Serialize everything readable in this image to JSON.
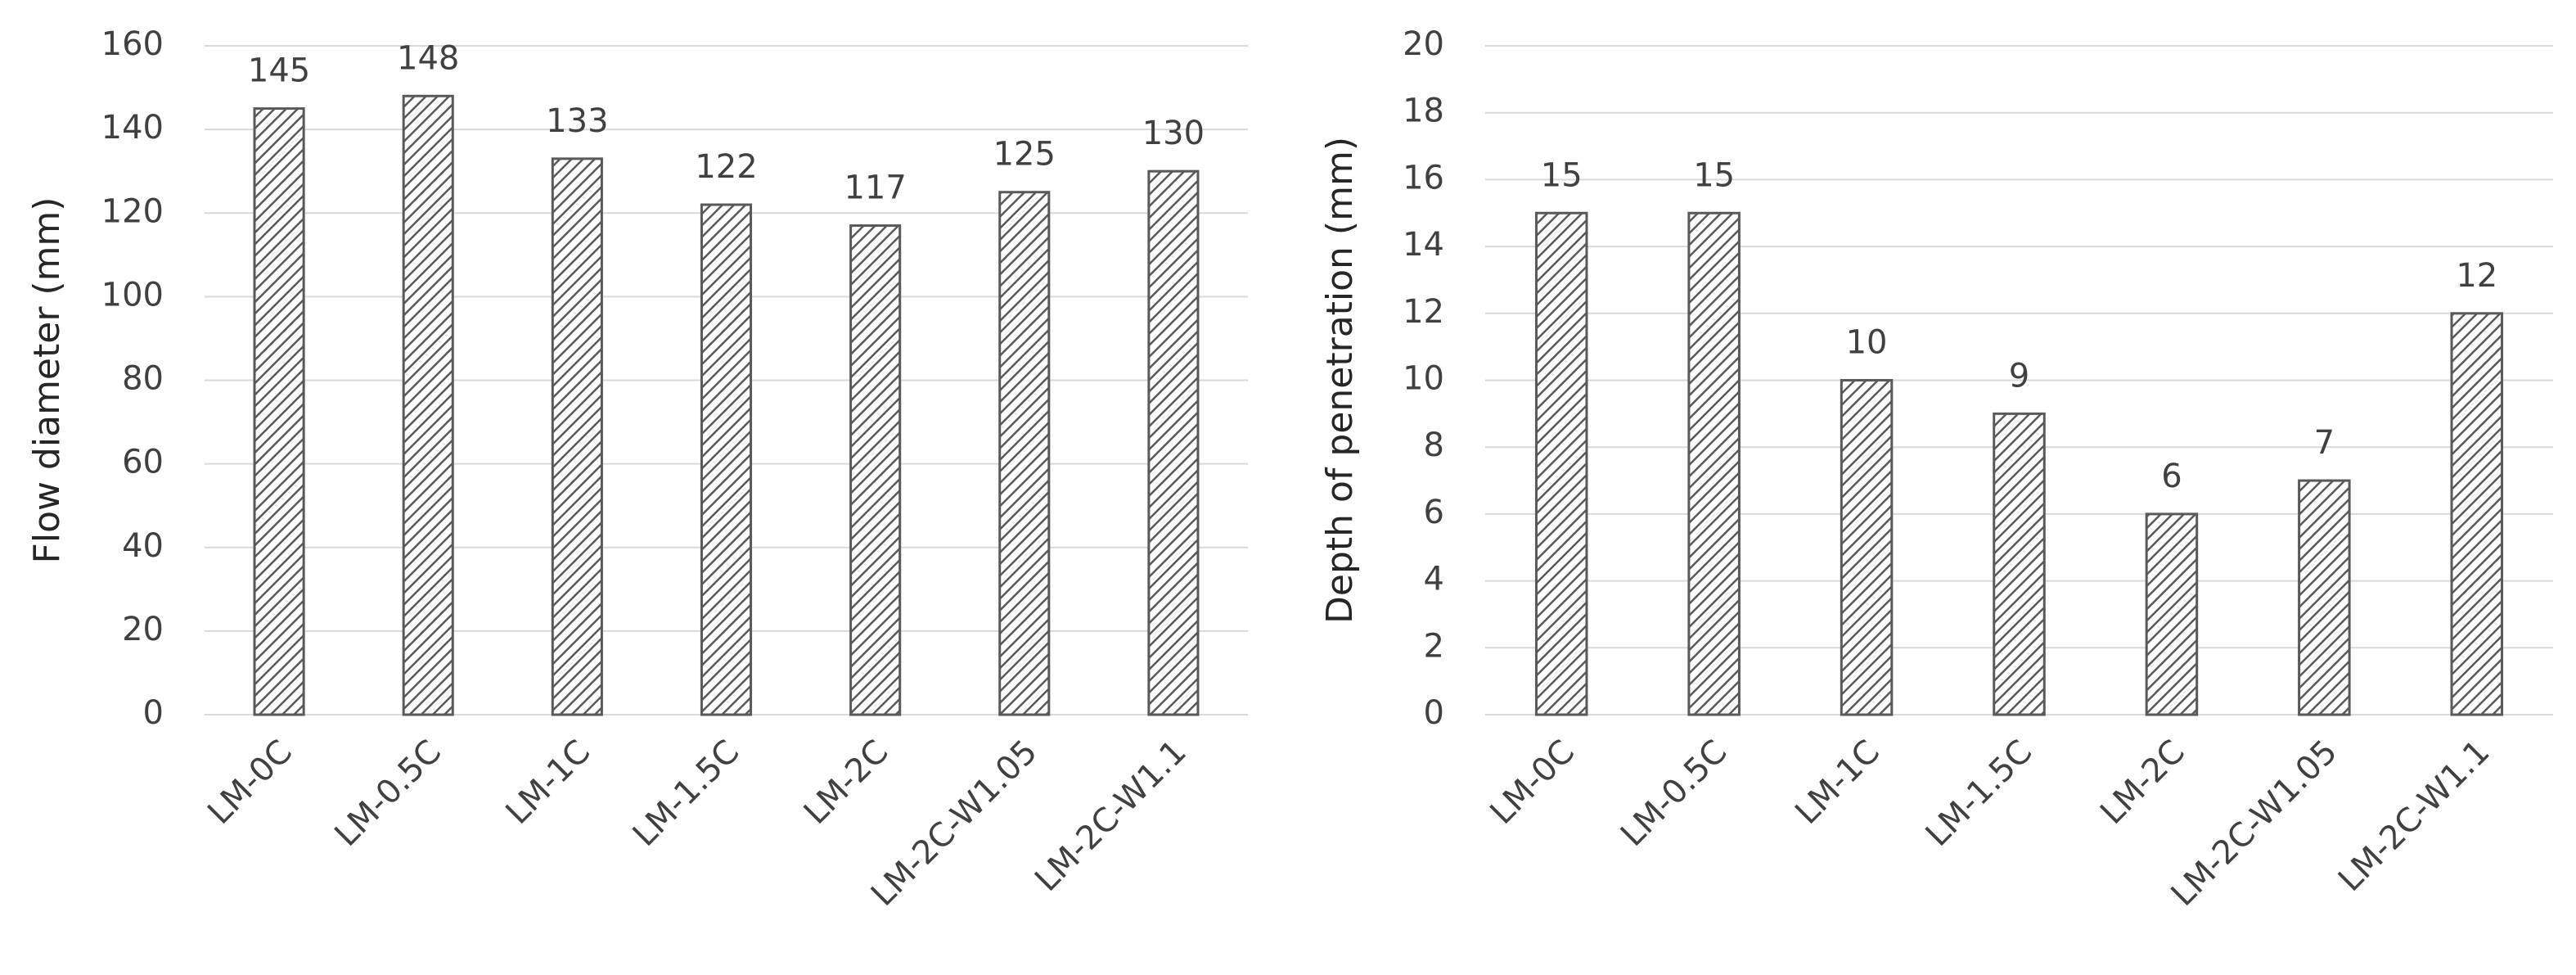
{
  "chart_data": [
    {
      "type": "bar",
      "ylabel": "Flow diameter (mm)",
      "categories": [
        "LM-0C",
        "LM-0.5C",
        "LM-1C",
        "LM-1.5C",
        "LM-2C",
        "LM-2C-W1.05",
        "LM-2C-W1.1"
      ],
      "values": [
        145,
        148,
        133,
        122,
        117,
        125,
        130
      ],
      "color": "#595959",
      "ylim": [
        0,
        160
      ],
      "yticks": [
        0,
        20,
        40,
        60,
        80,
        100,
        120,
        140,
        160
      ],
      "grid": true
    },
    {
      "type": "bar",
      "ylabel": "Depth of penetration (mm)",
      "categories": [
        "LM-0C",
        "LM-0.5C",
        "LM-1C",
        "LM-1.5C",
        "LM-2C",
        "LM-2C-W1.05",
        "LM-2C-W1.1"
      ],
      "values": [
        15,
        15,
        10,
        9,
        6,
        7,
        12
      ],
      "color": "#595959",
      "ylim": [
        0,
        20
      ],
      "yticks": [
        0,
        2,
        4,
        6,
        8,
        10,
        12,
        14,
        16,
        18,
        20
      ],
      "grid": true
    }
  ]
}
